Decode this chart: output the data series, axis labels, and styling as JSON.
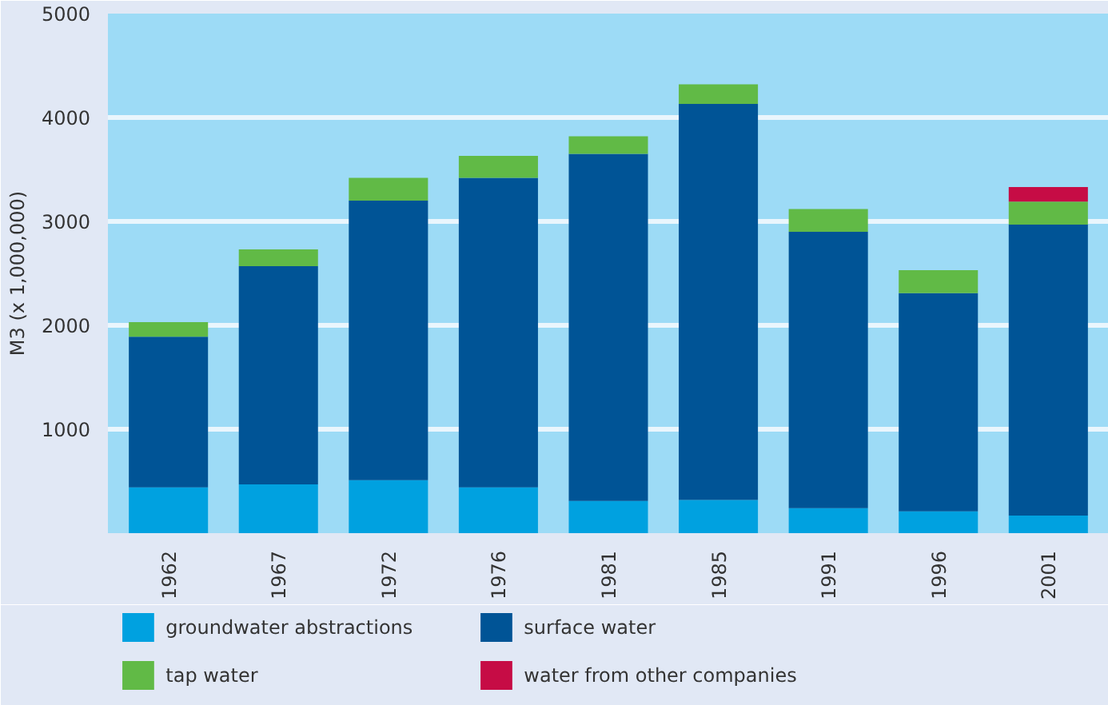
{
  "chart_data": {
    "type": "bar",
    "stacked": true,
    "ylabel": "M3 (x 1,000,000)",
    "categories": [
      "1962",
      "1967",
      "1972",
      "1976",
      "1981",
      "1985",
      "1991",
      "1996",
      "2001"
    ],
    "series": [
      {
        "name": "groundwater abstractions",
        "color": "#00a1e0",
        "values": [
          440,
          470,
          510,
          440,
          310,
          320,
          240,
          210,
          170
        ]
      },
      {
        "name": "surface water",
        "color": "#005496",
        "values": [
          1450,
          2100,
          2690,
          2980,
          3340,
          3810,
          2660,
          2100,
          2800
        ]
      },
      {
        "name": "tap water",
        "color": "#61ba46",
        "values": [
          140,
          160,
          220,
          210,
          170,
          190,
          220,
          220,
          220
        ]
      },
      {
        "name": "water from other companies",
        "color": "#c60c45",
        "values": [
          0,
          0,
          0,
          0,
          0,
          0,
          0,
          0,
          140
        ]
      }
    ],
    "ylim": [
      0,
      5000
    ],
    "yticks": [
      1000,
      2000,
      3000,
      4000,
      5000
    ],
    "grid": "y",
    "legend": "bottom"
  }
}
